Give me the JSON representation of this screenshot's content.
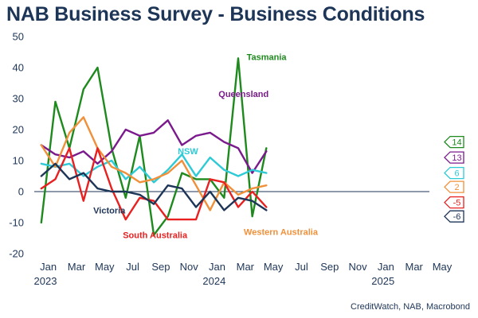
{
  "title": "NAB Business Survey - Business Conditions",
  "source": "CreditWatch, NAB, Macrobond",
  "chart_data": {
    "type": "line",
    "ylim": [
      -20,
      50
    ],
    "yticks": [
      -20,
      -10,
      0,
      10,
      20,
      30,
      40,
      50
    ],
    "xlim": [
      0,
      28.5
    ],
    "zero_line": true,
    "grid": false,
    "xticks": [
      {
        "x": 1,
        "label": "Jan"
      },
      {
        "x": 3,
        "label": "Mar"
      },
      {
        "x": 5,
        "label": "May"
      },
      {
        "x": 7,
        "label": "Jul"
      },
      {
        "x": 9,
        "label": "Sep"
      },
      {
        "x": 11,
        "label": "Nov"
      },
      {
        "x": 13,
        "label": "Jan"
      },
      {
        "x": 15,
        "label": "Mar"
      },
      {
        "x": 17,
        "label": "May"
      },
      {
        "x": 19,
        "label": "Jul"
      },
      {
        "x": 21,
        "label": "Sep"
      },
      {
        "x": 23,
        "label": "Nov"
      },
      {
        "x": 25,
        "label": "Jan"
      },
      {
        "x": 27,
        "label": "Mar"
      },
      {
        "x": 29,
        "label": "May"
      }
    ],
    "xlabel_years": [
      {
        "x": 0,
        "label": "2023"
      },
      {
        "x": 12,
        "label": "2024"
      },
      {
        "x": 24,
        "label": "2025"
      }
    ],
    "series": [
      {
        "name": "Tasmania",
        "color": "#1e8a1e",
        "values": [
          -10,
          29,
          14,
          33,
          40,
          14,
          -2,
          18,
          -14,
          -8,
          6,
          4,
          4,
          -2,
          43,
          -8,
          14
        ],
        "end_value": "14",
        "end_y": 16,
        "label": {
          "x": 15.1,
          "y": 42.5
        }
      },
      {
        "name": "Queensland",
        "color": "#7b1a8c",
        "values": [
          15,
          12,
          11,
          13,
          9,
          13,
          20,
          18,
          19,
          23,
          15,
          18,
          19,
          16,
          14,
          6,
          13
        ],
        "end_value": "13",
        "end_y": 11,
        "label": {
          "x": 13.1,
          "y": 30.5
        }
      },
      {
        "name": "NSW",
        "color": "#2ecad6",
        "values": [
          9,
          8,
          9,
          5,
          8,
          10,
          4,
          8,
          3,
          7,
          12,
          5,
          11,
          7,
          5,
          7,
          6
        ],
        "end_value": "6",
        "end_y": 6,
        "label": {
          "x": 10.2,
          "y": 12
        }
      },
      {
        "name": "Western Australia",
        "color": "#f0903a",
        "values": [
          15,
          8,
          19,
          24,
          14,
          8,
          6,
          3,
          4,
          6,
          10,
          2,
          -6,
          3,
          -1,
          1,
          2
        ],
        "end_value": "2",
        "end_y": 1.5,
        "label": {
          "x": 14.9,
          "y": -14
        }
      },
      {
        "name": "South Australia",
        "color": "#e82020",
        "values": [
          1,
          4,
          14,
          -3,
          14,
          1,
          -9,
          -2,
          -3,
          -9,
          -9,
          -9,
          4,
          3,
          -5,
          0,
          -5
        ],
        "end_value": "-5",
        "end_y": -3.5,
        "label": {
          "x": 6.3,
          "y": -15
        }
      },
      {
        "name": "Victoria",
        "color": "#1d3557",
        "values": [
          5,
          9,
          4,
          6,
          1,
          0,
          0,
          -1,
          -4,
          2,
          1,
          -5,
          0,
          -6,
          -2,
          -3,
          -6
        ],
        "end_value": "-6",
        "end_y": -8,
        "label": {
          "x": 4.2,
          "y": -7
        }
      }
    ]
  }
}
